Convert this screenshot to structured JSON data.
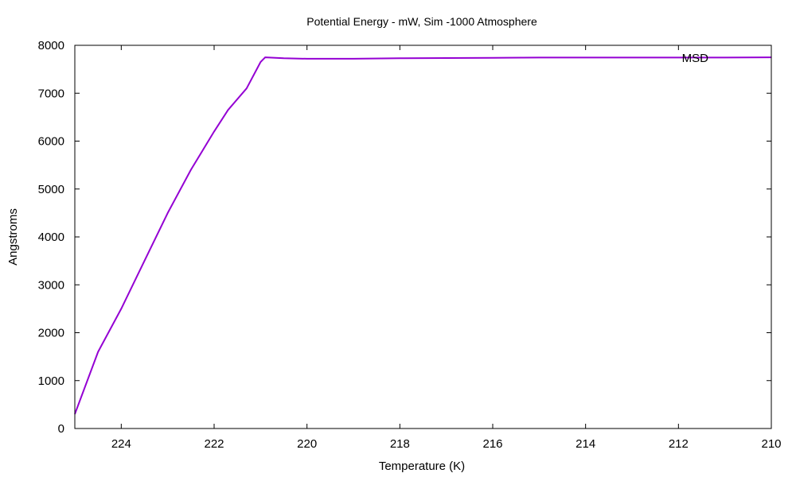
{
  "chart_data": {
    "type": "line",
    "title": "Potential Energy - mW, Sim -1000 Atmosphere",
    "xlabel": "Temperature (K)",
    "ylabel": "Angstroms",
    "xlim": [
      225,
      210
    ],
    "ylim": [
      0,
      8000
    ],
    "x_reversed": true,
    "x_ticks": [
      224,
      222,
      220,
      218,
      216,
      214,
      212,
      210
    ],
    "y_ticks": [
      0,
      1000,
      2000,
      3000,
      4000,
      5000,
      6000,
      7000,
      8000
    ],
    "grid": false,
    "legend_position": "top-right",
    "series": [
      {
        "name": "MSD",
        "color": "#9400d3",
        "x": [
          225.0,
          224.5,
          224.0,
          223.5,
          223.0,
          222.5,
          222.0,
          221.7,
          221.3,
          221.0,
          220.9,
          220.5,
          220.0,
          219.0,
          218.0,
          217.0,
          216.0,
          215.0,
          214.0,
          213.0,
          212.0,
          211.0,
          210.0
        ],
        "y": [
          300,
          1600,
          2500,
          3500,
          4500,
          5400,
          6200,
          6650,
          7100,
          7650,
          7750,
          7730,
          7720,
          7720,
          7730,
          7735,
          7740,
          7745,
          7745,
          7745,
          7745,
          7745,
          7750
        ]
      }
    ]
  }
}
